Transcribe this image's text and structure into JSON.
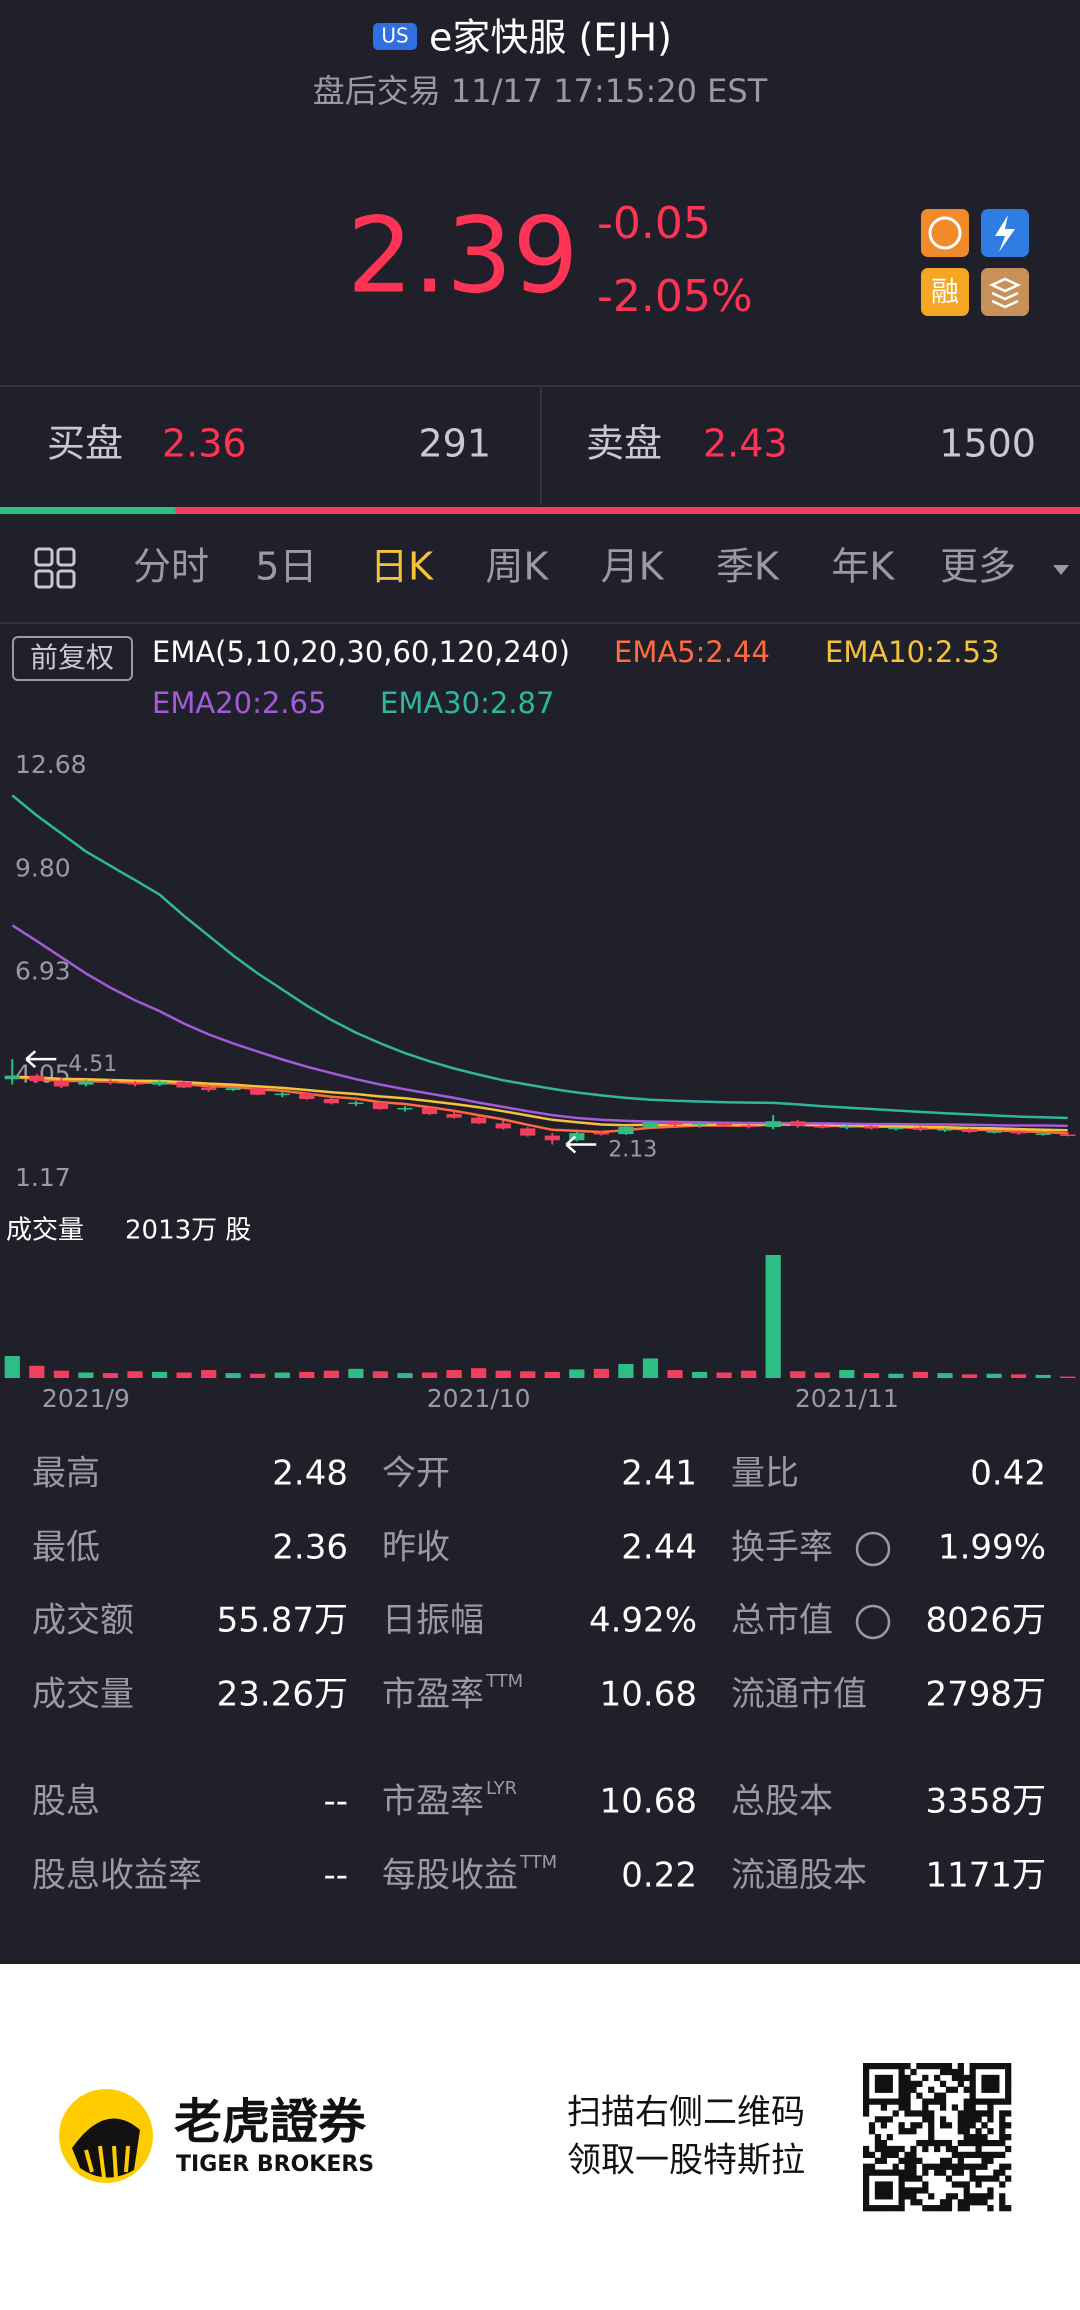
{
  "header": {
    "badge": "US",
    "title": "e家快服 (EJH)",
    "subtitle": "盘后交易 11/17 17:15:20 EST"
  },
  "quote": {
    "price": "2.39",
    "change": "-0.05",
    "change_pct": "-2.05%",
    "icon": "融"
  },
  "order_book": {
    "bid_label": "买盘",
    "bid_price": "2.36",
    "bid_size": 291,
    "ask_label": "卖盘",
    "ask_price": "2.43",
    "ask_size": 1500
  },
  "tabs": [
    "分时",
    "5日",
    "日K",
    "周K",
    "月K",
    "季K",
    "年K",
    "更多"
  ],
  "active_tab": 2,
  "chart_data": {
    "type": "candlestick",
    "adjust_label": "前复权",
    "ema_params": "EMA(5,10,20,30,60,120,240)",
    "categories": [
      null,
      null,
      null,
      "2021/9",
      null,
      null,
      null,
      null,
      null,
      null,
      null,
      null,
      null,
      null,
      null,
      null,
      null,
      null,
      null,
      "2021/10",
      null,
      null,
      null,
      null,
      null,
      null,
      null,
      null,
      null,
      null,
      null,
      null,
      null,
      null,
      "2021/11",
      null,
      null,
      null,
      null,
      null,
      null,
      null,
      null,
      null
    ],
    "candle_colors": {
      "up": "#2ebd85",
      "down": "#f23f5d"
    },
    "candles": [
      [
        3.95,
        4.51,
        3.8,
        4.05
      ],
      [
        4.05,
        4.1,
        3.85,
        3.9
      ],
      [
        3.9,
        4.0,
        3.7,
        3.75
      ],
      [
        3.8,
        3.95,
        3.75,
        3.9
      ],
      [
        3.9,
        3.95,
        3.8,
        3.85
      ],
      [
        3.85,
        3.9,
        3.75,
        3.8
      ],
      [
        3.8,
        3.92,
        3.76,
        3.88
      ],
      [
        3.88,
        3.9,
        3.7,
        3.72
      ],
      [
        3.72,
        3.78,
        3.6,
        3.65
      ],
      [
        3.65,
        3.75,
        3.62,
        3.7
      ],
      [
        3.7,
        3.72,
        3.5,
        3.52
      ],
      [
        3.52,
        3.6,
        3.45,
        3.55
      ],
      [
        3.55,
        3.58,
        3.38,
        3.4
      ],
      [
        3.4,
        3.45,
        3.25,
        3.28
      ],
      [
        3.28,
        3.35,
        3.2,
        3.3
      ],
      [
        3.3,
        3.32,
        3.1,
        3.12
      ],
      [
        3.12,
        3.2,
        3.05,
        3.15
      ],
      [
        3.15,
        3.18,
        2.95,
        2.98
      ],
      [
        2.98,
        3.05,
        2.85,
        2.88
      ],
      [
        2.88,
        2.92,
        2.7,
        2.72
      ],
      [
        2.72,
        2.8,
        2.55,
        2.58
      ],
      [
        2.58,
        2.62,
        2.35,
        2.38
      ],
      [
        2.38,
        2.45,
        2.13,
        2.25
      ],
      [
        2.25,
        2.48,
        2.22,
        2.45
      ],
      [
        2.45,
        2.52,
        2.38,
        2.42
      ],
      [
        2.42,
        2.65,
        2.4,
        2.62
      ],
      [
        2.62,
        2.78,
        2.58,
        2.75
      ],
      [
        2.75,
        2.8,
        2.62,
        2.68
      ],
      [
        2.68,
        2.75,
        2.6,
        2.72
      ],
      [
        2.72,
        2.76,
        2.64,
        2.66
      ],
      [
        2.66,
        2.7,
        2.58,
        2.62
      ],
      [
        2.62,
        2.95,
        2.55,
        2.78
      ],
      [
        2.78,
        2.82,
        2.6,
        2.65
      ],
      [
        2.65,
        2.7,
        2.58,
        2.6
      ],
      [
        2.6,
        2.68,
        2.56,
        2.64
      ],
      [
        2.64,
        2.66,
        2.55,
        2.58
      ],
      [
        2.58,
        2.62,
        2.52,
        2.6
      ],
      [
        2.6,
        2.63,
        2.5,
        2.54
      ],
      [
        2.54,
        2.6,
        2.48,
        2.56
      ],
      [
        2.56,
        2.58,
        2.45,
        2.48
      ],
      [
        2.48,
        2.55,
        2.44,
        2.5
      ],
      [
        2.5,
        2.52,
        2.4,
        2.44
      ],
      [
        2.44,
        2.47,
        2.38,
        2.44
      ],
      [
        2.41,
        2.48,
        2.36,
        2.39
      ]
    ],
    "series": [
      {
        "name": "EMA5:2.44",
        "color": "#ff6b3d",
        "values": [
          4.0,
          3.97,
          3.9,
          3.9,
          3.88,
          3.85,
          3.86,
          3.81,
          3.76,
          3.74,
          3.67,
          3.63,
          3.55,
          3.46,
          3.41,
          3.31,
          3.26,
          3.17,
          3.07,
          2.95,
          2.83,
          2.68,
          2.54,
          2.51,
          2.48,
          2.53,
          2.6,
          2.63,
          2.66,
          2.66,
          2.65,
          2.69,
          2.68,
          2.65,
          2.65,
          2.63,
          2.62,
          2.59,
          2.58,
          2.55,
          2.53,
          2.5,
          2.48,
          2.44
        ]
      },
      {
        "name": "EMA10:2.53",
        "color": "#f5c33b",
        "values": [
          4.02,
          4.0,
          3.96,
          3.95,
          3.93,
          3.91,
          3.9,
          3.87,
          3.83,
          3.8,
          3.75,
          3.71,
          3.65,
          3.59,
          3.54,
          3.47,
          3.42,
          3.34,
          3.26,
          3.17,
          3.06,
          2.94,
          2.82,
          2.75,
          2.69,
          2.67,
          2.68,
          2.68,
          2.69,
          2.69,
          2.68,
          2.7,
          2.69,
          2.68,
          2.67,
          2.65,
          2.64,
          2.62,
          2.61,
          2.59,
          2.58,
          2.56,
          2.54,
          2.53
        ]
      },
      {
        "name": "EMA20:2.65",
        "color": "#a35bd8",
        "values": [
          8.24,
          7.8,
          7.35,
          6.9,
          6.5,
          6.15,
          5.85,
          5.5,
          5.2,
          4.95,
          4.72,
          4.5,
          4.3,
          4.12,
          3.95,
          3.8,
          3.67,
          3.55,
          3.43,
          3.3,
          3.18,
          3.06,
          2.95,
          2.87,
          2.82,
          2.79,
          2.77,
          2.76,
          2.75,
          2.74,
          2.73,
          2.73,
          2.72,
          2.72,
          2.71,
          2.7,
          2.7,
          2.69,
          2.69,
          2.68,
          2.67,
          2.66,
          2.66,
          2.65
        ]
      },
      {
        "name": "EMA30:2.87",
        "color": "#2fb5a0",
        "values": [
          11.86,
          11.3,
          10.8,
          10.3,
          9.9,
          9.5,
          9.1,
          8.5,
          7.95,
          7.4,
          6.9,
          6.45,
          6.0,
          5.6,
          5.25,
          4.95,
          4.68,
          4.45,
          4.25,
          4.08,
          3.92,
          3.8,
          3.68,
          3.58,
          3.5,
          3.43,
          3.38,
          3.35,
          3.33,
          3.31,
          3.3,
          3.29,
          3.25,
          3.2,
          3.16,
          3.12,
          3.08,
          3.04,
          3.0,
          2.97,
          2.94,
          2.91,
          2.89,
          2.87
        ]
      }
    ],
    "ylim": [
      1.17,
      12.68
    ],
    "yticks": [
      12.68,
      {
        "value": 9.8,
        "label": "9.80"
      },
      6.93,
      4.05,
      1.17
    ],
    "high_label": 4.51,
    "low_label": 2.13,
    "volume_title": "成交量",
    "volume_max_label": "2013万 股",
    "volumes": [
      360,
      200,
      120,
      90,
      80,
      110,
      100,
      90,
      130,
      80,
      70,
      90,
      100,
      120,
      150,
      110,
      80,
      90,
      130,
      160,
      120,
      110,
      100,
      140,
      150,
      230,
      320,
      130,
      100,
      90,
      120,
      2013,
      110,
      90,
      130,
      80,
      70,
      100,
      80,
      60,
      70,
      60,
      50,
      23.26
    ],
    "vlim": [
      0,
      2013
    ]
  },
  "stats": [
    [
      {
        "label": "最高",
        "value": "2.48"
      },
      {
        "label": "今开",
        "value": "2.41"
      },
      {
        "label": "量比",
        "value": "0.42"
      }
    ],
    [
      {
        "label": "最低",
        "value": "2.36"
      },
      {
        "label": "昨收",
        "value": "2.44"
      },
      {
        "label": "换手率",
        "value": "1.99%"
      }
    ],
    [
      {
        "label": "成交额",
        "value": "55.87万"
      },
      {
        "label": "日振幅",
        "value": "4.92%"
      },
      {
        "label": "总市值",
        "value": "8026万"
      }
    ],
    [
      {
        "label": "成交量",
        "value": "23.26万"
      },
      {
        "label": "市盈率",
        "sup": "TTM",
        "value": "10.68"
      },
      {
        "label": "流通市值",
        "value": "2798万"
      }
    ],
    [
      {
        "label": "股息",
        "value": "--"
      },
      {
        "label": "市盈率",
        "sup": "LYR",
        "value": "10.68"
      },
      {
        "label": "总股本",
        "value": "3358万"
      }
    ],
    [
      {
        "label": "股息收益率",
        "value": "--"
      },
      {
        "label": "每股收益",
        "sup": "TTM",
        "value": "0.22"
      },
      {
        "label": "流通股本",
        "value": "1171万"
      }
    ]
  ],
  "footer": {
    "brand": "老虎證券",
    "brand_en": "TIGER BROKERS",
    "promo_1": "扫描右侧二维码",
    "promo_2": "领取一股特斯拉"
  }
}
